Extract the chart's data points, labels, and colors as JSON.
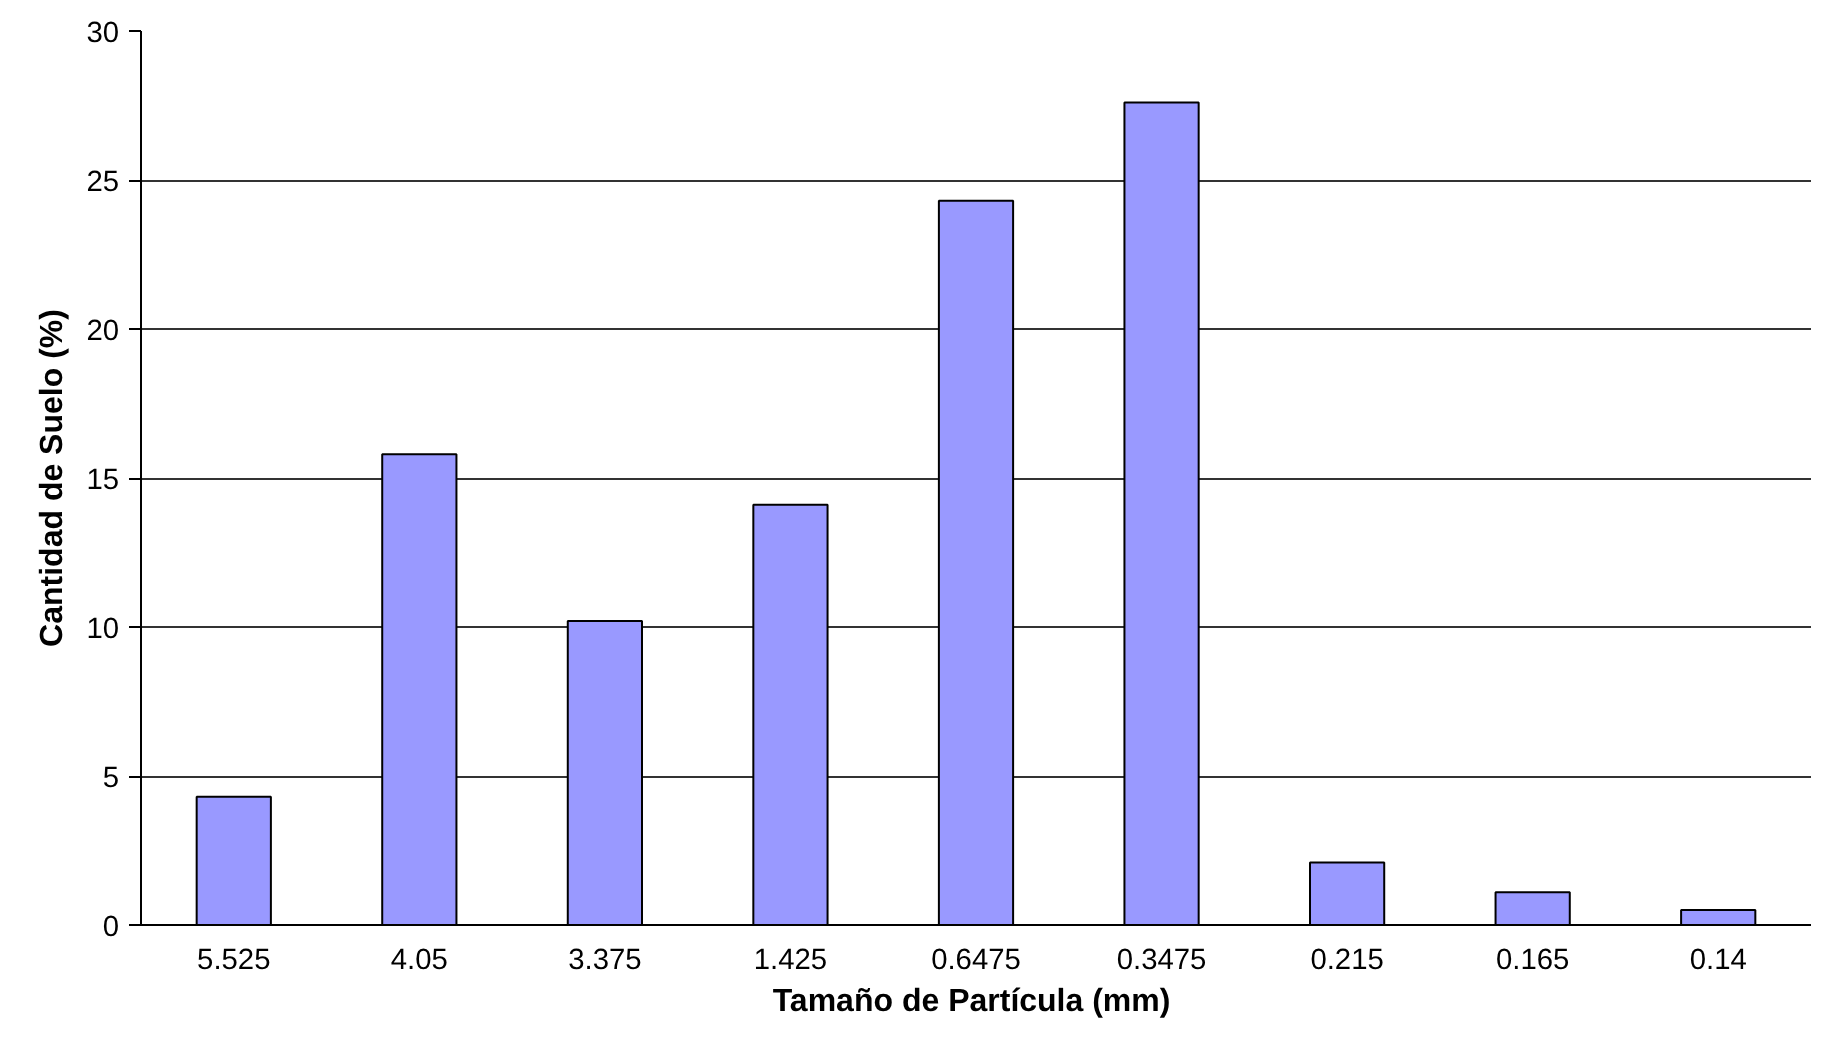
{
  "chart_data": {
    "type": "bar",
    "xlabel": "Tamaño de Partícula  (mm)",
    "ylabel": "Cantidad de Suelo (%)",
    "categories": [
      "5.525",
      "4.05",
      "3.375",
      "1.425",
      "0.6475",
      "0.3475",
      "0.215",
      "0.165",
      "0.14"
    ],
    "values": [
      4.3,
      15.8,
      10.2,
      14.1,
      24.3,
      27.6,
      2.1,
      1.1,
      0.5
    ],
    "color": "#9999ff",
    "ylim": [
      0,
      30
    ],
    "yticks": [
      0,
      5,
      10,
      15,
      20,
      25,
      30
    ],
    "grid": "y"
  }
}
